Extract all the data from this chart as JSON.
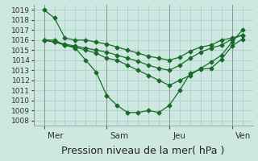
{
  "xlabel": "Pression niveau de la mer( hPa )",
  "ylim": [
    1007.5,
    1019.5
  ],
  "yticks": [
    1008,
    1009,
    1010,
    1011,
    1012,
    1013,
    1014,
    1015,
    1016,
    1017,
    1018,
    1019
  ],
  "background_color": "#cce8e0",
  "grid_color": "#aacccc",
  "line_color": "#1a6b2a",
  "day_labels": [
    "Mer",
    "Sam",
    "Jeu",
    "Ven"
  ],
  "day_positions": [
    0,
    36,
    72,
    108
  ],
  "xlim": [
    -6,
    120
  ],
  "series": [
    {
      "x": [
        0,
        6,
        12,
        18,
        24,
        30,
        36,
        42,
        48,
        54,
        60,
        66,
        72,
        78,
        84,
        90,
        96,
        102,
        108,
        114
      ],
      "y": [
        1019.0,
        1018.2,
        1016.2,
        1016.0,
        1016.0,
        1015.8,
        1015.6,
        1015.3,
        1015.0,
        1014.7,
        1014.4,
        1014.2,
        1014.0,
        1014.3,
        1014.9,
        1015.3,
        1015.5,
        1016.0,
        1016.2,
        1016.5
      ],
      "marker": "D",
      "markersize": 2.5
    },
    {
      "x": [
        0,
        6,
        12,
        18,
        24,
        30,
        36,
        42,
        48,
        54,
        60,
        66,
        72,
        78,
        84,
        90,
        96,
        102,
        108,
        114
      ],
      "y": [
        1016.0,
        1016.0,
        1015.5,
        1015.2,
        1014.0,
        1012.8,
        1010.5,
        1009.5,
        1008.8,
        1008.8,
        1009.0,
        1008.8,
        1009.5,
        1011.0,
        1012.7,
        1013.1,
        1013.2,
        1014.1,
        1015.4,
        1016.1
      ],
      "marker": "D",
      "markersize": 2.5
    },
    {
      "x": [
        0,
        6,
        12,
        18,
        24,
        30,
        36,
        42,
        48,
        54,
        60,
        66,
        72,
        78,
        84,
        90,
        96,
        102,
        108,
        114
      ],
      "y": [
        1016.0,
        1015.8,
        1015.5,
        1015.3,
        1015.0,
        1014.7,
        1014.2,
        1014.0,
        1013.5,
        1013.0,
        1012.5,
        1012.0,
        1011.5,
        1012.0,
        1012.5,
        1013.2,
        1013.8,
        1014.5,
        1015.8,
        1017.0
      ],
      "marker": "D",
      "markersize": 2.5
    },
    {
      "x": [
        0,
        6,
        12,
        18,
        24,
        30,
        36,
        42,
        48,
        54,
        60,
        66,
        72,
        78,
        84,
        90,
        96,
        102,
        108,
        114
      ],
      "y": [
        1016.0,
        1015.8,
        1015.6,
        1015.4,
        1015.2,
        1015.0,
        1014.8,
        1014.5,
        1014.2,
        1013.9,
        1013.5,
        1013.2,
        1013.0,
        1013.5,
        1014.2,
        1014.8,
        1015.2,
        1015.5,
        1016.1,
        1016.5
      ],
      "marker": "D",
      "markersize": 2.5
    }
  ],
  "xlabel_fontsize": 9,
  "tick_fontsize": 6.5,
  "label_fontsize": 7.5
}
